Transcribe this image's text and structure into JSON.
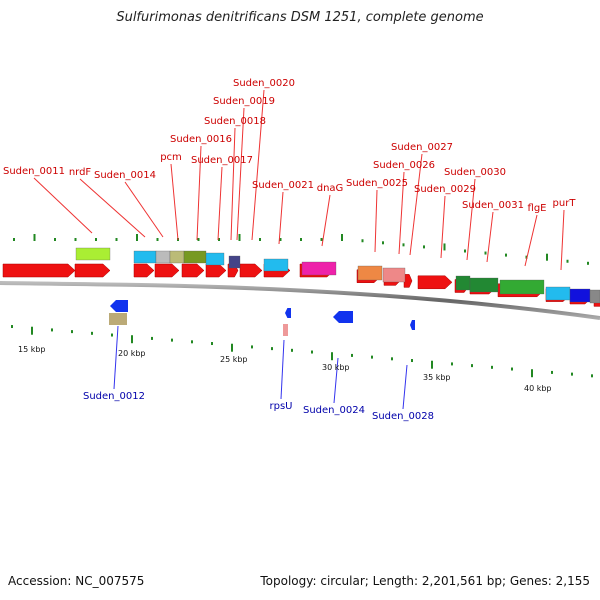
{
  "title": "Sulfurimonas denitrificans DSM 1251, complete genome",
  "footer": {
    "accession": "Accession: NC_007575",
    "topology": "Topology: circular; Length: 2,201,561 bp; Genes: 2,155"
  },
  "scale_labels": [
    "15 kbp",
    "20 kbp",
    "25 kbp",
    "30 kbp",
    "35 kbp",
    "40 kbp"
  ],
  "forward_gene_labels": [
    "Suden_0011",
    "nrdF",
    "Suden_0014",
    "pcm",
    "Suden_0016",
    "Suden_0017",
    "Suden_0018",
    "Suden_0019",
    "Suden_0020",
    "Suden_0021",
    "dnaG",
    "Suden_0025",
    "Suden_0026",
    "Suden_0027",
    "Suden_0029",
    "Suden_0030",
    "Suden_0031",
    "flgE",
    "purT"
  ],
  "reverse_gene_labels": [
    "Suden_0012",
    "rpsU",
    "Suden_0024",
    "Suden_0028"
  ],
  "colors": {
    "forward_label": "#cc0000",
    "reverse_label": "#0000aa",
    "forward_gene": "#ee1111",
    "reverse_gene": "#1133ee",
    "backbone": "#777777",
    "tick": "#228822"
  }
}
